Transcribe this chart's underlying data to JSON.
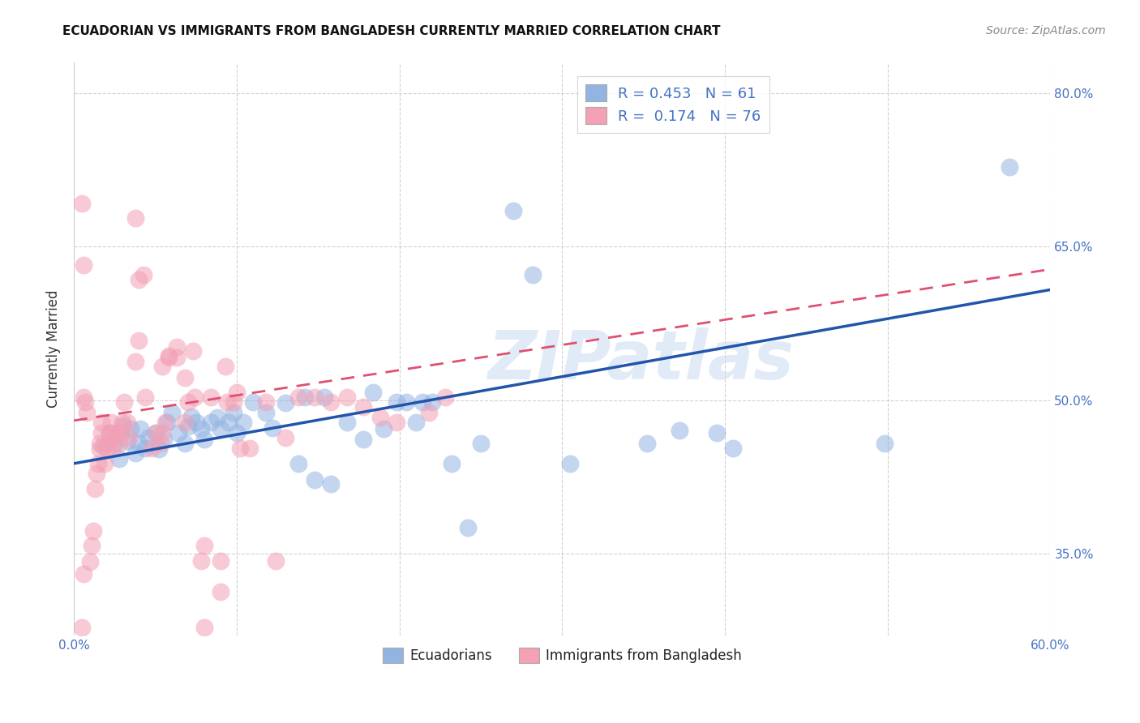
{
  "title": "ECUADORIAN VS IMMIGRANTS FROM BANGLADESH CURRENTLY MARRIED CORRELATION CHART",
  "source": "Source: ZipAtlas.com",
  "ylabel": "Currently Married",
  "watermark": "ZIPatlas",
  "xlim": [
    0.0,
    0.6
  ],
  "ylim": [
    0.27,
    0.83
  ],
  "xticks": [
    0.0,
    0.1,
    0.2,
    0.3,
    0.4,
    0.5,
    0.6
  ],
  "xticklabels": [
    "0.0%",
    "",
    "",
    "",
    "",
    "",
    "60.0%"
  ],
  "yticks": [
    0.35,
    0.5,
    0.65,
    0.8
  ],
  "yticklabels": [
    "35.0%",
    "50.0%",
    "65.0%",
    "80.0%"
  ],
  "R_blue": 0.453,
  "N_blue": 61,
  "R_pink": 0.174,
  "N_pink": 76,
  "legend_label_blue": "Ecuadorians",
  "legend_label_pink": "Immigrants from Bangladesh",
  "blue_color": "#92b4e3",
  "pink_color": "#f4a0b5",
  "blue_line_color": "#2255aa",
  "pink_line_color": "#e05070",
  "legend_R_color": "#4472c4",
  "blue_scatter": [
    [
      0.018,
      0.455
    ],
    [
      0.022,
      0.468
    ],
    [
      0.025,
      0.458
    ],
    [
      0.03,
      0.475
    ],
    [
      0.028,
      0.443
    ],
    [
      0.033,
      0.46
    ],
    [
      0.035,
      0.472
    ],
    [
      0.038,
      0.448
    ],
    [
      0.04,
      0.458
    ],
    [
      0.041,
      0.472
    ],
    [
      0.044,
      0.453
    ],
    [
      0.046,
      0.463
    ],
    [
      0.05,
      0.468
    ],
    [
      0.052,
      0.452
    ],
    [
      0.055,
      0.462
    ],
    [
      0.057,
      0.478
    ],
    [
      0.06,
      0.488
    ],
    [
      0.064,
      0.468
    ],
    [
      0.068,
      0.458
    ],
    [
      0.07,
      0.474
    ],
    [
      0.072,
      0.484
    ],
    [
      0.075,
      0.478
    ],
    [
      0.078,
      0.472
    ],
    [
      0.08,
      0.462
    ],
    [
      0.084,
      0.478
    ],
    [
      0.088,
      0.483
    ],
    [
      0.09,
      0.472
    ],
    [
      0.095,
      0.478
    ],
    [
      0.098,
      0.488
    ],
    [
      0.1,
      0.468
    ],
    [
      0.104,
      0.478
    ],
    [
      0.11,
      0.498
    ],
    [
      0.118,
      0.488
    ],
    [
      0.122,
      0.473
    ],
    [
      0.13,
      0.497
    ],
    [
      0.138,
      0.438
    ],
    [
      0.142,
      0.503
    ],
    [
      0.148,
      0.422
    ],
    [
      0.154,
      0.503
    ],
    [
      0.158,
      0.418
    ],
    [
      0.168,
      0.478
    ],
    [
      0.178,
      0.462
    ],
    [
      0.184,
      0.508
    ],
    [
      0.19,
      0.472
    ],
    [
      0.198,
      0.498
    ],
    [
      0.204,
      0.498
    ],
    [
      0.21,
      0.478
    ],
    [
      0.214,
      0.498
    ],
    [
      0.22,
      0.498
    ],
    [
      0.232,
      0.438
    ],
    [
      0.242,
      0.375
    ],
    [
      0.25,
      0.458
    ],
    [
      0.27,
      0.685
    ],
    [
      0.282,
      0.623
    ],
    [
      0.305,
      0.438
    ],
    [
      0.352,
      0.458
    ],
    [
      0.372,
      0.47
    ],
    [
      0.395,
      0.468
    ],
    [
      0.405,
      0.453
    ],
    [
      0.498,
      0.458
    ],
    [
      0.575,
      0.728
    ]
  ],
  "pink_scatter": [
    [
      0.005,
      0.278
    ],
    [
      0.006,
      0.33
    ],
    [
      0.01,
      0.342
    ],
    [
      0.011,
      0.358
    ],
    [
      0.012,
      0.372
    ],
    [
      0.013,
      0.413
    ],
    [
      0.014,
      0.428
    ],
    [
      0.015,
      0.438
    ],
    [
      0.016,
      0.458
    ],
    [
      0.017,
      0.468
    ],
    [
      0.016,
      0.452
    ],
    [
      0.017,
      0.478
    ],
    [
      0.019,
      0.438
    ],
    [
      0.02,
      0.453
    ],
    [
      0.021,
      0.458
    ],
    [
      0.022,
      0.468
    ],
    [
      0.023,
      0.478
    ],
    [
      0.024,
      0.453
    ],
    [
      0.025,
      0.463
    ],
    [
      0.026,
      0.468
    ],
    [
      0.028,
      0.458
    ],
    [
      0.029,
      0.468
    ],
    [
      0.03,
      0.478
    ],
    [
      0.031,
      0.498
    ],
    [
      0.033,
      0.478
    ],
    [
      0.034,
      0.463
    ],
    [
      0.038,
      0.538
    ],
    [
      0.04,
      0.558
    ],
    [
      0.044,
      0.503
    ],
    [
      0.048,
      0.453
    ],
    [
      0.05,
      0.468
    ],
    [
      0.053,
      0.458
    ],
    [
      0.054,
      0.468
    ],
    [
      0.056,
      0.478
    ],
    [
      0.058,
      0.543
    ],
    [
      0.063,
      0.552
    ],
    [
      0.068,
      0.478
    ],
    [
      0.07,
      0.498
    ],
    [
      0.074,
      0.503
    ],
    [
      0.078,
      0.343
    ],
    [
      0.08,
      0.358
    ],
    [
      0.084,
      0.503
    ],
    [
      0.09,
      0.343
    ],
    [
      0.094,
      0.498
    ],
    [
      0.098,
      0.498
    ],
    [
      0.1,
      0.508
    ],
    [
      0.102,
      0.453
    ],
    [
      0.108,
      0.453
    ],
    [
      0.118,
      0.498
    ],
    [
      0.124,
      0.343
    ],
    [
      0.13,
      0.463
    ],
    [
      0.138,
      0.503
    ],
    [
      0.148,
      0.503
    ],
    [
      0.158,
      0.498
    ],
    [
      0.168,
      0.503
    ],
    [
      0.178,
      0.493
    ],
    [
      0.188,
      0.483
    ],
    [
      0.198,
      0.478
    ],
    [
      0.218,
      0.488
    ],
    [
      0.228,
      0.503
    ],
    [
      0.005,
      0.692
    ],
    [
      0.006,
      0.632
    ],
    [
      0.038,
      0.678
    ],
    [
      0.043,
      0.623
    ],
    [
      0.04,
      0.618
    ],
    [
      0.058,
      0.542
    ],
    [
      0.054,
      0.533
    ],
    [
      0.063,
      0.542
    ],
    [
      0.068,
      0.522
    ],
    [
      0.073,
      0.548
    ],
    [
      0.093,
      0.533
    ],
    [
      0.08,
      0.278
    ],
    [
      0.09,
      0.313
    ],
    [
      0.006,
      0.503
    ],
    [
      0.007,
      0.498
    ],
    [
      0.008,
      0.488
    ]
  ],
  "blue_trend": [
    0.0,
    0.6,
    0.438,
    0.608
  ],
  "pink_trend": [
    0.0,
    0.6,
    0.48,
    0.628
  ],
  "background_color": "#ffffff",
  "grid_color": "#cccccc"
}
